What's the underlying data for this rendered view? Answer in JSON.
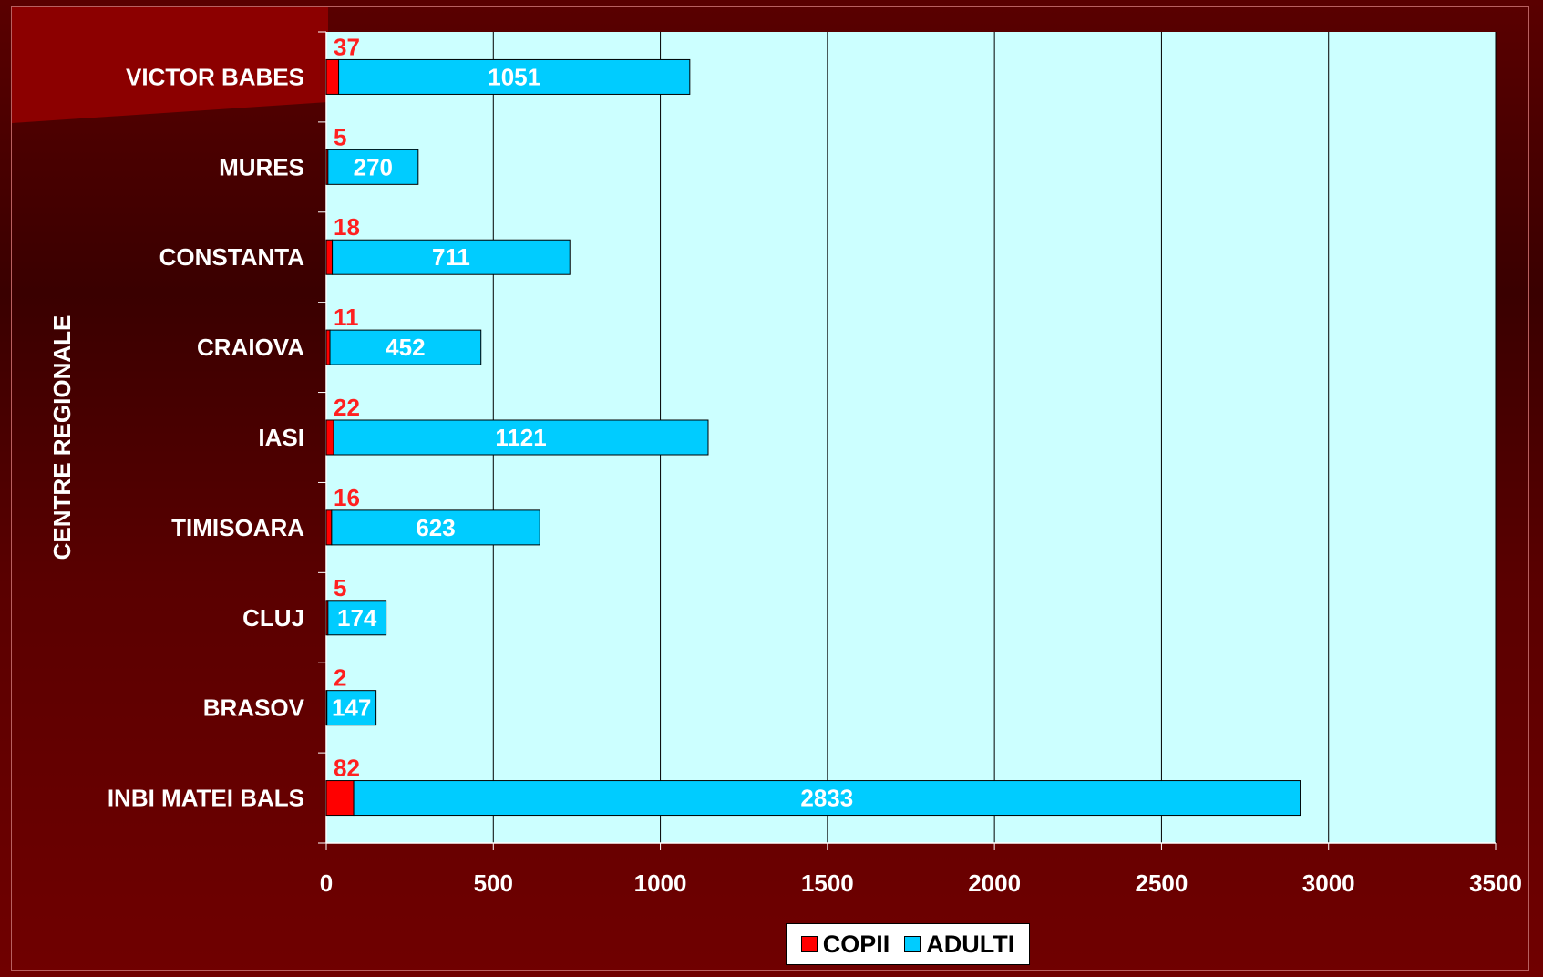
{
  "chart_data": {
    "type": "bar",
    "orientation": "horizontal",
    "stacked": true,
    "ylabel": "CENTRE REGIONALE",
    "categories": [
      "VICTOR BABES",
      "MURES",
      "CONSTANTA",
      "CRAIOVA",
      "IASI",
      "TIMISOARA",
      "CLUJ",
      "BRASOV",
      "INBI MATEI BALS"
    ],
    "series": [
      {
        "name": "COPII",
        "values": [
          37,
          5,
          18,
          11,
          22,
          16,
          5,
          2,
          82
        ],
        "color": "#ff0000"
      },
      {
        "name": "ADULTI",
        "values": [
          1051,
          270,
          711,
          452,
          1121,
          623,
          174,
          147,
          2833
        ],
        "color": "#00ccff"
      }
    ],
    "xlim": [
      0,
      3500
    ],
    "xticks": [
      "0",
      "500",
      "1000",
      "1500",
      "2000",
      "2500",
      "3000",
      "3500"
    ],
    "grid": true,
    "legend": "bottom",
    "colors": {
      "plot_background": "#ccffff",
      "copii_label": "#ff2020",
      "adulti_label": "#ffffff"
    }
  }
}
